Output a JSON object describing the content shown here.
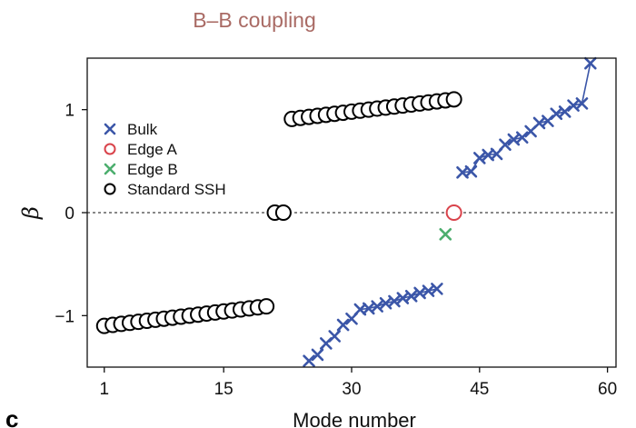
{
  "chart_data": {
    "type": "scatter",
    "title": "B–B coupling",
    "xlabel": "Mode number",
    "ylabel": "β",
    "panel_label": "c",
    "xlim": [
      -1,
      61
    ],
    "ylim": [
      -1.5,
      1.5
    ],
    "x_ticks": [
      1,
      15,
      30,
      45,
      60
    ],
    "y_ticks": [
      -1,
      0,
      1
    ],
    "y_tick_labels": [
      "−1",
      "0",
      "1"
    ],
    "zero_line": "dashed",
    "grid": false,
    "legend_position": "upper-left",
    "colors": {
      "bulk": "#3b56a8",
      "edge_a": "#d9434b",
      "edge_b": "#4cae6e",
      "standard_ssh": "#000000",
      "title": "#a96a64"
    },
    "series": [
      {
        "name": "Bulk",
        "marker": "x",
        "connected": true,
        "points": [
          [
            25,
            -1.44
          ],
          [
            26,
            -1.38
          ],
          [
            27,
            -1.27
          ],
          [
            28,
            -1.2
          ],
          [
            29,
            -1.09
          ],
          [
            30,
            -1.03
          ],
          [
            31,
            -0.94
          ],
          [
            32,
            -0.93
          ],
          [
            33,
            -0.91
          ],
          [
            34,
            -0.88
          ],
          [
            35,
            -0.86
          ],
          [
            36,
            -0.83
          ],
          [
            37,
            -0.81
          ],
          [
            38,
            -0.78
          ],
          [
            39,
            -0.76
          ],
          [
            40,
            -0.74
          ],
          [
            43,
            0.39
          ],
          [
            44,
            0.4
          ],
          [
            45,
            0.53
          ],
          [
            46,
            0.56
          ],
          [
            47,
            0.57
          ],
          [
            48,
            0.66
          ],
          [
            49,
            0.71
          ],
          [
            50,
            0.73
          ],
          [
            51,
            0.79
          ],
          [
            52,
            0.87
          ],
          [
            53,
            0.89
          ],
          [
            54,
            0.96
          ],
          [
            55,
            0.98
          ],
          [
            56,
            1.04
          ],
          [
            57,
            1.06
          ],
          [
            58,
            1.45
          ]
        ]
      },
      {
        "name": "Edge A",
        "marker": "circle",
        "connected": false,
        "points": [
          [
            42,
            0.0
          ]
        ]
      },
      {
        "name": "Edge B",
        "marker": "x",
        "connected": false,
        "points": [
          [
            41,
            -0.21
          ]
        ]
      },
      {
        "name": "Standard SSH",
        "marker": "circle",
        "connected": false,
        "points": [
          [
            1,
            -1.1
          ],
          [
            2,
            -1.09
          ],
          [
            3,
            -1.08
          ],
          [
            4,
            -1.07
          ],
          [
            5,
            -1.06
          ],
          [
            6,
            -1.05
          ],
          [
            7,
            -1.04
          ],
          [
            8,
            -1.03
          ],
          [
            9,
            -1.02
          ],
          [
            10,
            -1.01
          ],
          [
            11,
            -1.0
          ],
          [
            12,
            -0.99
          ],
          [
            13,
            -0.98
          ],
          [
            14,
            -0.97
          ],
          [
            15,
            -0.96
          ],
          [
            16,
            -0.95
          ],
          [
            17,
            -0.94
          ],
          [
            18,
            -0.93
          ],
          [
            19,
            -0.92
          ],
          [
            20,
            -0.91
          ],
          [
            21,
            0.0
          ],
          [
            22,
            0.0
          ],
          [
            23,
            0.91
          ],
          [
            24,
            0.92
          ],
          [
            25,
            0.93
          ],
          [
            26,
            0.94
          ],
          [
            27,
            0.95
          ],
          [
            28,
            0.96
          ],
          [
            29,
            0.97
          ],
          [
            30,
            0.98
          ],
          [
            31,
            0.99
          ],
          [
            32,
            1.0
          ],
          [
            33,
            1.01
          ],
          [
            34,
            1.02
          ],
          [
            35,
            1.03
          ],
          [
            36,
            1.04
          ],
          [
            37,
            1.05
          ],
          [
            38,
            1.06
          ],
          [
            39,
            1.07
          ],
          [
            40,
            1.08
          ],
          [
            41,
            1.09
          ],
          [
            42,
            1.1
          ]
        ]
      }
    ]
  }
}
